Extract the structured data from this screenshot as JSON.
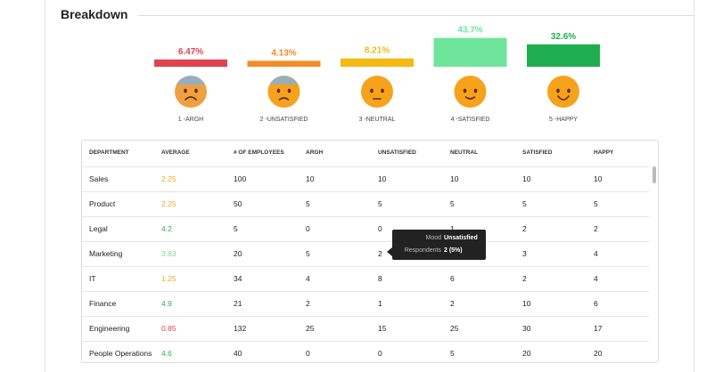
{
  "header": {
    "title": "Breakdown"
  },
  "breakdown": {
    "items": [
      {
        "percent": {
          "value": 6.47,
          "label": "6.47%"
        },
        "label": "1 -ARGH",
        "color": "#e0434f"
      },
      {
        "percent": {
          "value": 4.13,
          "label": "4.13%"
        },
        "label": "2 -UNSATISFIED",
        "color": "#f28c28"
      },
      {
        "percent": {
          "value": 8.21,
          "label": "8.21%"
        },
        "label": "3 -NEUTRAL",
        "color": "#f5b914"
      },
      {
        "percent": {
          "value": 43.7,
          "label": "43.7%"
        },
        "label": "4 -SATISFIED",
        "color": "#6ee59a"
      },
      {
        "percent": {
          "value": 32.6,
          "label": "32.6%"
        },
        "label": "5 -HAPPY",
        "color": "#1fae4f"
      }
    ]
  },
  "table": {
    "columns": [
      "DEPARTMENT",
      "AVERAGE",
      "# OF EMPLOYEES",
      "ARGH",
      "UNSATISFIED",
      "NEUTRAL",
      "SATISFIED",
      "HAPPY"
    ],
    "rows": [
      [
        "Sales",
        "2.25",
        "100",
        "10",
        "10",
        "10",
        "10",
        "10"
      ],
      [
        "Product",
        "2.25",
        "50",
        "5",
        "5",
        "5",
        "5",
        "5"
      ],
      [
        "Legal",
        "4.2",
        "5",
        "0",
        "0",
        "1",
        "2",
        "2"
      ],
      [
        "Marketing",
        "3.83",
        "20",
        "5",
        "2",
        "",
        "3",
        "4"
      ],
      [
        "IT",
        "1.25",
        "34",
        "4",
        "8",
        "6",
        "2",
        "4"
      ],
      [
        "Finance",
        "4.9",
        "21",
        "2",
        "1",
        "2",
        "10",
        "6"
      ],
      [
        "Engineering",
        "0.85",
        "132",
        "25",
        "15",
        "25",
        "30",
        "17"
      ],
      [
        "People Operations",
        "4.6",
        "40",
        "0",
        "0",
        "5",
        "20",
        "20"
      ]
    ],
    "average_colors": [
      "#f5a623",
      "#f5a623",
      "#2bb34f",
      "#7fd69a",
      "#f5a623",
      "#2bb34f",
      "#e0434f",
      "#2bb34f"
    ]
  },
  "tooltip": {
    "rows": [
      [
        "Mood",
        "Unsatisfied"
      ],
      [
        "Respondents",
        "2 (5%)"
      ]
    ]
  }
}
